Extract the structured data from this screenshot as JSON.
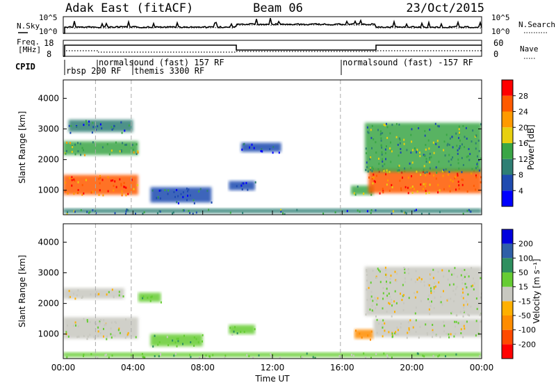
{
  "header": {
    "station": "Adak East (fitACF)",
    "beam": "Beam 06",
    "date": "23/Oct/2015"
  },
  "noise_panel": {
    "left_label": "N.Sky",
    "right_label": "N.Search",
    "ticks_left": [
      "10^5",
      "10^0"
    ],
    "ticks_right": [
      "10^5",
      "10^0"
    ]
  },
  "freq_panel": {
    "left_label_1": "Freq.",
    "left_label_2": "[MHz]",
    "right_label": "Nave",
    "ticks_left": [
      "18",
      "8"
    ],
    "ticks_right": [
      "60",
      "0"
    ]
  },
  "cpid": {
    "label": "CPID",
    "segments": [
      {
        "text": "rbsp 200 RF"
      },
      {
        "text": "normalsound (fast) 157 RF"
      },
      {
        "text": "themis 3300 RF"
      },
      {
        "text": "normalsound (fast) -157 RF"
      }
    ]
  },
  "x_axis": {
    "label": "Time UT",
    "ticks": [
      "00:00",
      "04:00",
      "08:00",
      "12:00",
      "16:00",
      "20:00",
      "00:00"
    ]
  },
  "power_panel": {
    "ylabel": "Slant Range [km]",
    "yticks": [
      "1000",
      "2000",
      "3000",
      "4000"
    ],
    "colorbar_label": "Power [dB]",
    "colorbar_ticks": [
      "4",
      "8",
      "12",
      "16",
      "20",
      "24",
      "28"
    ],
    "colorbar_colors": [
      "#0000ff",
      "#1f4bb0",
      "#2f7f74",
      "#3aa646",
      "#e8d010",
      "#ff9a00",
      "#ff5a00",
      "#ff0000"
    ]
  },
  "velocity_panel": {
    "ylabel": "Slant Range [km]",
    "yticks": [
      "1000",
      "2000",
      "3000",
      "4000"
    ],
    "colorbar_label": "Velocity [m s⁻¹]",
    "colorbar_ticks": [
      "-200",
      "-100",
      "-50",
      "-15",
      "15",
      "50",
      "100",
      "200"
    ],
    "colorbar_colors": [
      "#ff0000",
      "#ff4a00",
      "#ff8c00",
      "#ffb000",
      "#c8c8c0",
      "#66cc33",
      "#2f8f5f",
      "#2f5fa8",
      "#0000dd"
    ]
  },
  "chart_data": [
    {
      "type": "heatmap",
      "title": "Power [dB]",
      "xlabel": "Time UT",
      "ylabel": "Slant Range [km]",
      "xlim": [
        "00:00",
        "24:00"
      ],
      "ylim": [
        200,
        4600
      ],
      "clim": [
        0,
        31
      ],
      "regions": [
        {
          "t_start": 0.0,
          "t_end": 4.3,
          "range_low": 850,
          "range_high": 1500,
          "power": 26
        },
        {
          "t_start": 0.0,
          "t_end": 4.3,
          "range_low": 2150,
          "range_high": 2600,
          "power": 15
        },
        {
          "t_start": 0.3,
          "t_end": 4.0,
          "range_low": 2900,
          "range_high": 3300,
          "power": 8
        },
        {
          "t_start": 5.0,
          "t_end": 8.5,
          "range_low": 600,
          "range_high": 1100,
          "power": 7
        },
        {
          "t_start": 9.5,
          "t_end": 11.0,
          "range_low": 1000,
          "range_high": 1300,
          "power": 6
        },
        {
          "t_start": 10.2,
          "t_end": 12.5,
          "range_low": 2250,
          "range_high": 2550,
          "power": 5
        },
        {
          "t_start": 16.5,
          "t_end": 17.8,
          "range_low": 850,
          "range_high": 1150,
          "power": 14
        },
        {
          "t_start": 17.5,
          "t_end": 24.0,
          "range_low": 900,
          "range_high": 1700,
          "power": 24
        },
        {
          "t_start": 17.3,
          "t_end": 24.0,
          "range_low": 1600,
          "range_high": 3200,
          "power": 12
        },
        {
          "t_start": 0.0,
          "t_end": 24.0,
          "range_low": 250,
          "range_high": 400,
          "power": 10
        }
      ]
    },
    {
      "type": "heatmap",
      "title": "Velocity [m s⁻¹]",
      "xlabel": "Time UT",
      "ylabel": "Slant Range [km]",
      "xlim": [
        "00:00",
        "24:00"
      ],
      "ylim": [
        200,
        4600
      ],
      "clim": [
        -220,
        220
      ],
      "regions": [
        {
          "t_start": 0.0,
          "t_end": 4.3,
          "range_low": 850,
          "range_high": 1550,
          "velocity": 0
        },
        {
          "t_start": 0.0,
          "t_end": 3.5,
          "range_low": 2150,
          "range_high": 2500,
          "velocity": 0
        },
        {
          "t_start": 4.3,
          "t_end": 5.6,
          "range_low": 2050,
          "range_high": 2350,
          "velocity": 40
        },
        {
          "t_start": 5.0,
          "t_end": 8.0,
          "range_low": 600,
          "range_high": 1000,
          "velocity": 40
        },
        {
          "t_start": 9.5,
          "t_end": 11.0,
          "range_low": 1000,
          "range_high": 1300,
          "velocity": 40
        },
        {
          "t_start": 16.7,
          "t_end": 17.8,
          "range_low": 850,
          "range_high": 1150,
          "velocity": -70
        },
        {
          "t_start": 17.8,
          "t_end": 24.0,
          "range_low": 900,
          "range_high": 1500,
          "velocity": 0
        },
        {
          "t_start": 17.3,
          "t_end": 24.0,
          "range_low": 1600,
          "range_high": 3200,
          "velocity": 0
        },
        {
          "t_start": 0.0,
          "t_end": 24.0,
          "range_low": 250,
          "range_high": 400,
          "velocity": 30
        }
      ]
    }
  ]
}
